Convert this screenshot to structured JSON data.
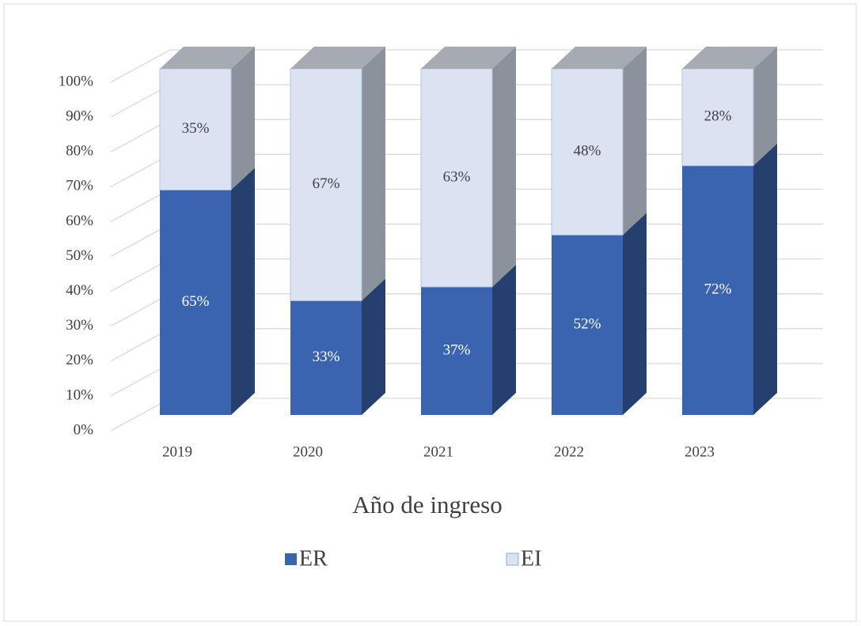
{
  "chart_data": {
    "type": "bar3d_stacked",
    "x_label": "Año de ingreso",
    "categories": [
      "2019",
      "2020",
      "2021",
      "2022",
      "2023"
    ],
    "series": [
      {
        "name": "ER",
        "color": "#3a64b0",
        "values": [
          65,
          33,
          37,
          52,
          72
        ],
        "value_labels": [
          "65%",
          "33%",
          "37%",
          "52%",
          "72%"
        ]
      },
      {
        "name": "EI",
        "color": "#dbe3f3",
        "values": [
          35,
          67,
          63,
          48,
          28
        ],
        "value_labels": [
          "35%",
          "67%",
          "63%",
          "48%",
          "28%"
        ]
      }
    ],
    "ylim": [
      0,
      100
    ],
    "yticks": [
      {
        "value": 0,
        "label": "0%"
      },
      {
        "value": 10,
        "label": "10%"
      },
      {
        "value": 20,
        "label": "20%"
      },
      {
        "value": 30,
        "label": "30%"
      },
      {
        "value": 40,
        "label": "40%"
      },
      {
        "value": 50,
        "label": "50%"
      },
      {
        "value": 60,
        "label": "60%"
      },
      {
        "value": 70,
        "label": "70%"
      },
      {
        "value": 80,
        "label": "80%"
      },
      {
        "value": 90,
        "label": "90%"
      },
      {
        "value": 100,
        "label": "100%"
      }
    ],
    "grid": true,
    "legend": "bottom"
  }
}
